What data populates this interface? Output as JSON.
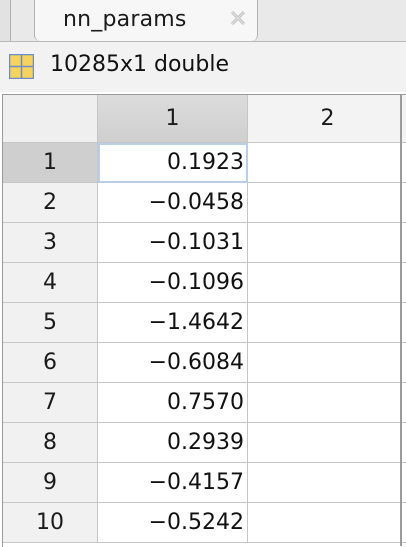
{
  "tab": {
    "title": "nn_params",
    "close_icon": "close-icon"
  },
  "variable": {
    "icon": "grid-icon",
    "description": "10285x1 double"
  },
  "grid": {
    "columns": [
      "1",
      "2"
    ],
    "selected_column": "1",
    "selected_row": "1",
    "rows": [
      {
        "label": "1",
        "values": [
          "0.1923",
          ""
        ]
      },
      {
        "label": "2",
        "values": [
          "-0.0458",
          ""
        ]
      },
      {
        "label": "3",
        "values": [
          "-0.1031",
          ""
        ]
      },
      {
        "label": "4",
        "values": [
          "-0.1096",
          ""
        ]
      },
      {
        "label": "5",
        "values": [
          "-1.4642",
          ""
        ]
      },
      {
        "label": "6",
        "values": [
          "-0.6084",
          ""
        ]
      },
      {
        "label": "7",
        "values": [
          "0.7570",
          ""
        ]
      },
      {
        "label": "8",
        "values": [
          "0.2939",
          ""
        ]
      },
      {
        "label": "9",
        "values": [
          "-0.4157",
          ""
        ]
      },
      {
        "label": "10",
        "values": [
          "-0.5242",
          ""
        ]
      }
    ]
  },
  "colors": {
    "header_bg": "#f3f3f3",
    "selected_header_bg": "#cfcfcf",
    "active_cell_outline": "#b9cfe9",
    "icon_yellow": "#f6d35a",
    "icon_blue": "#6a8fc8"
  }
}
